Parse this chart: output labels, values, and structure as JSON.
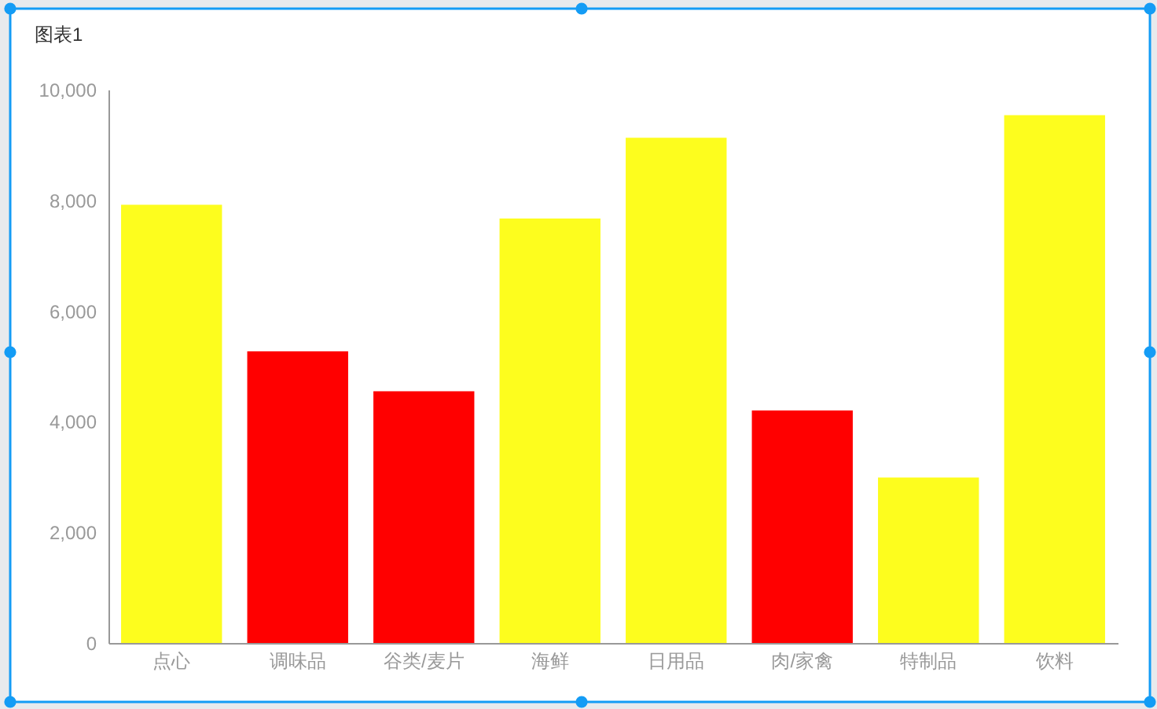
{
  "chart_data": {
    "type": "bar",
    "title": "图表1",
    "categories": [
      "点心",
      "调味品",
      "谷类/麦片",
      "海鲜",
      "日用品",
      "肉/家禽",
      "特制品",
      "饮料"
    ],
    "values": [
      7920,
      5270,
      4550,
      7670,
      9130,
      4200,
      2990,
      9540
    ],
    "colors": [
      "#fdfd1e",
      "#ff0000",
      "#ff0000",
      "#fdfd1e",
      "#fdfd1e",
      "#ff0000",
      "#fdfd1e",
      "#fdfd1e"
    ],
    "ylim": [
      0,
      10000
    ],
    "yticks": [
      0,
      {
        "value": 2000,
        "label": "2,000"
      },
      {
        "value": 4000,
        "label": "4,000"
      },
      {
        "value": 6000,
        "label": "6,000"
      },
      {
        "value": 8000,
        "label": "8,000"
      },
      {
        "value": 10000,
        "label": "10,000"
      }
    ]
  }
}
